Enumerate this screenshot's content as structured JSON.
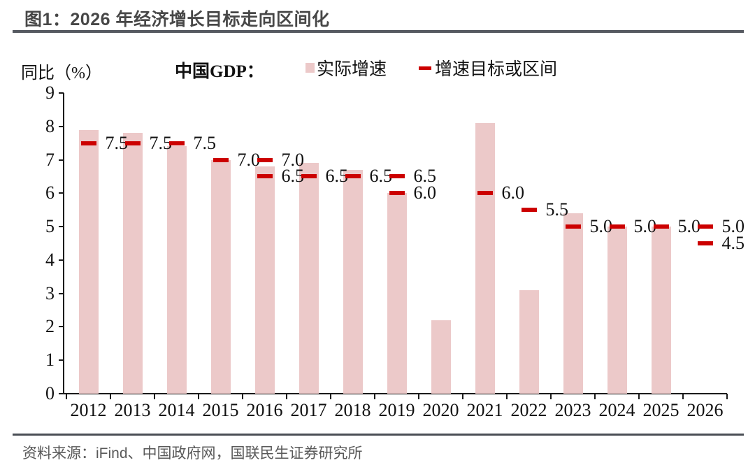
{
  "page": {
    "title": "图1：2026 年经济增长目标走向区间化",
    "source": "资料来源：iFind、中国政府网，国联民生证券研究所"
  },
  "chart_data": {
    "type": "bar",
    "title": "中国GDP：",
    "ylabel": "同比（%）",
    "ylim": [
      0,
      9
    ],
    "yticks": [
      0,
      1,
      2,
      3,
      4,
      5,
      6,
      7,
      8,
      9
    ],
    "grid": false,
    "legend_position": "top",
    "bar_color": "#ecc9c9",
    "target_color": "#cc0000",
    "axis_color": "#1a1a1a",
    "legend": [
      {
        "label": "实际增速",
        "marker": "bar-swatch"
      },
      {
        "label": "增速目标或区间",
        "marker": "dash"
      }
    ],
    "categories": [
      "2012",
      "2013",
      "2014",
      "2015",
      "2016",
      "2017",
      "2018",
      "2019",
      "2020",
      "2021",
      "2022",
      "2023",
      "2024",
      "2025",
      "2026"
    ],
    "series": [
      {
        "name": "实际增速",
        "type": "bar",
        "values": [
          7.9,
          7.8,
          7.4,
          7.0,
          6.8,
          6.9,
          6.7,
          6.0,
          2.2,
          8.1,
          3.1,
          5.4,
          5.0,
          5.0,
          null
        ]
      },
      {
        "name": "增速目标或区间",
        "type": "target-dash",
        "targets": [
          [
            7.5
          ],
          [
            7.5
          ],
          [
            7.5
          ],
          [
            7.0
          ],
          [
            6.5,
            7.0
          ],
          [
            6.5
          ],
          [
            6.5
          ],
          [
            6.0,
            6.5
          ],
          [],
          [
            6.0
          ],
          [
            5.5
          ],
          [
            5.0
          ],
          [
            5.0
          ],
          [
            5.0
          ],
          [
            4.5,
            5.0
          ]
        ],
        "labels": [
          [
            "7.5"
          ],
          [
            "7.5"
          ],
          [
            "7.5"
          ],
          [
            "7.0"
          ],
          [
            "6.5",
            "7.0"
          ],
          [
            "6.5"
          ],
          [
            "6.5"
          ],
          [
            "6.0",
            "6.5"
          ],
          [],
          [
            "6.0"
          ],
          [
            "5.5"
          ],
          [
            "5.0"
          ],
          [
            "5.0"
          ],
          [
            "5.0"
          ],
          [
            "4.5",
            "5.0"
          ]
        ]
      }
    ]
  }
}
